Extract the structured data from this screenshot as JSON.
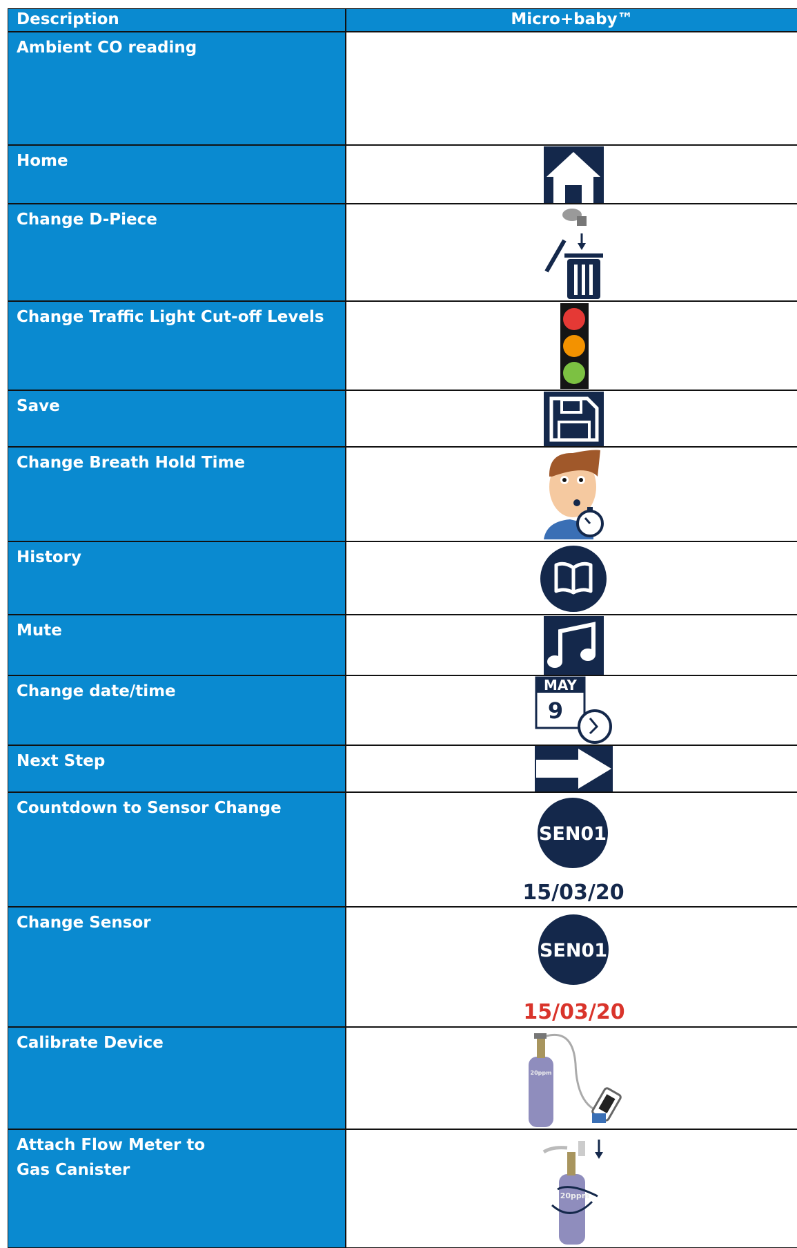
{
  "table": {
    "header": [
      "Description",
      "Micro+baby™"
    ],
    "rows": [
      {
        "description": "Ambient CO reading"
      },
      {
        "description": "Home"
      },
      {
        "description": "Change D-Piece"
      },
      {
        "description": "Change Traffic Light Cut-off Levels"
      },
      {
        "description": "Save"
      },
      {
        "description": "Change Breath Hold Time"
      },
      {
        "description": "History"
      },
      {
        "description": "Mute"
      },
      {
        "description": "Change date/time",
        "icon_text": [
          "MAY",
          "9"
        ]
      },
      {
        "description": "Next Step"
      },
      {
        "description": "Countdown to Sensor Change",
        "icon_text": [
          "SEN01",
          "15/03/20"
        ]
      },
      {
        "description": "Change Sensor",
        "icon_text": [
          "SEN01",
          "15/03/20"
        ]
      },
      {
        "description": "Calibrate Device",
        "icon_text": [
          "20ppm"
        ]
      },
      {
        "description": "Attach Flow Meter to Gas Canister",
        "icon_text": [
          "20ppm"
        ]
      }
    ]
  }
}
